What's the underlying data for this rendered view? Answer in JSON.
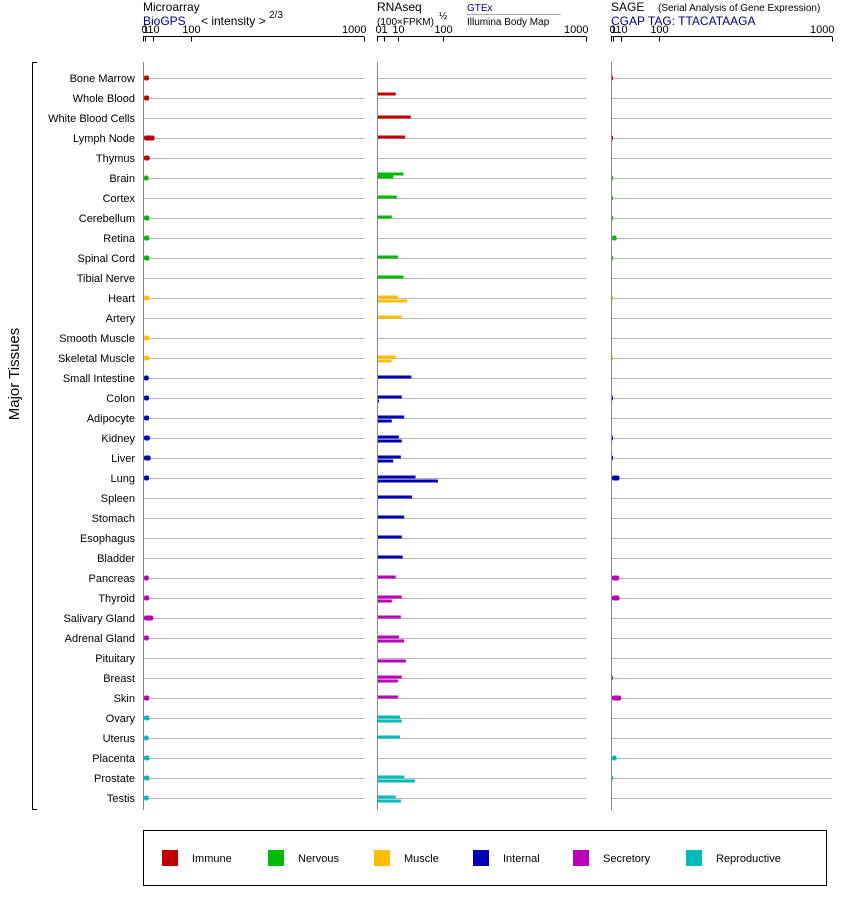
{
  "headers": {
    "microarray": {
      "title": "Microarray",
      "source": "BioGPS",
      "scale_label": "< intensity >",
      "scale_exp": "2/3"
    },
    "rnaseq": {
      "title": "RNAseq",
      "unit": "(100×FPKM)",
      "unit_exp": "½",
      "source1": "GTEx",
      "source2": "Illumina Body Map"
    },
    "sage": {
      "title": "SAGE",
      "subtitle": "(Serial Analysis of Gene Expression)",
      "tag": "CGAP TAG: TTACATAAGA"
    }
  },
  "group_label": "Major Tissues",
  "legend": [
    {
      "label": "Immune",
      "color": "#c00000"
    },
    {
      "label": "Nervous",
      "color": "#00bb00"
    },
    {
      "label": "Muscle",
      "color": "#ffbf00"
    },
    {
      "label": "Internal",
      "color": "#0000b4"
    },
    {
      "label": "Secretory",
      "color": "#bb00bb"
    },
    {
      "label": "Reproductive",
      "color": "#00bbbb"
    }
  ],
  "chart_data": [
    {
      "type": "bar",
      "title": "Microarray",
      "scale": "power-2/3",
      "xlim": [
        0,
        1000
      ],
      "xticks": [
        "0",
        "1",
        "10",
        "100",
        "1000"
      ],
      "categories": [
        "Bone Marrow",
        "Whole Blood",
        "White Blood Cells",
        "Lymph Node",
        "Thymus",
        "Brain",
        "Cortex",
        "Cerebellum",
        "Retina",
        "Spinal Cord",
        "Tibial Nerve",
        "Heart",
        "Artery",
        "Smooth Muscle",
        "Skeletal Muscle",
        "Small Intestine",
        "Colon",
        "Adipocyte",
        "Kidney",
        "Liver",
        "Lung",
        "Spleen",
        "Stomach",
        "Esophagus",
        "Bladder",
        "Pancreas",
        "Thyroid",
        "Salivary Gland",
        "Adrenal Gland",
        "Pituitary",
        "Breast",
        "Skin",
        "Ovary",
        "Uterus",
        "Placenta",
        "Prostate",
        "Testis"
      ],
      "groups": [
        "Immune",
        "Immune",
        "Immune",
        "Immune",
        "Immune",
        "Nervous",
        "Nervous",
        "Nervous",
        "Nervous",
        "Nervous",
        "Nervous",
        "Muscle",
        "Muscle",
        "Muscle",
        "Muscle",
        "Internal",
        "Internal",
        "Internal",
        "Internal",
        "Internal",
        "Internal",
        "Internal",
        "Internal",
        "Internal",
        "Internal",
        "Secretory",
        "Secretory",
        "Secretory",
        "Secretory",
        "Secretory",
        "Secretory",
        "Secretory",
        "Reproductive",
        "Reproductive",
        "Reproductive",
        "Reproductive",
        "Reproductive"
      ],
      "values": [
        4.5,
        4.6,
        null,
        12.0,
        5.3,
        4.0,
        null,
        4.9,
        4.8,
        4.9,
        null,
        4.9,
        null,
        4.9,
        4.9,
        4.2,
        4.5,
        4.6,
        5.5,
        6.4,
        4.6,
        null,
        null,
        null,
        null,
        4.2,
        4.7,
        10.0,
        4.3,
        null,
        null,
        4.7,
        4.9,
        4.1,
        4.9,
        4.9,
        4.2
      ]
    },
    {
      "type": "bar",
      "title": "RNAseq",
      "scale": "sqrt",
      "xlim": [
        0,
        1000
      ],
      "xticks": [
        "0",
        "1",
        "10",
        "100",
        "1000"
      ],
      "categories": [
        "Bone Marrow",
        "Whole Blood",
        "White Blood Cells",
        "Lymph Node",
        "Thymus",
        "Brain",
        "Cortex",
        "Cerebellum",
        "Retina",
        "Spinal Cord",
        "Tibial Nerve",
        "Heart",
        "Artery",
        "Smooth Muscle",
        "Skeletal Muscle",
        "Small Intestine",
        "Colon",
        "Adipocyte",
        "Kidney",
        "Liver",
        "Lung",
        "Spleen",
        "Stomach",
        "Esophagus",
        "Bladder",
        "Pancreas",
        "Thyroid",
        "Salivary Gland",
        "Adrenal Gland",
        "Pituitary",
        "Breast",
        "Skin",
        "Ovary",
        "Uterus",
        "Placenta",
        "Prostate",
        "Testis"
      ],
      "series": [
        {
          "values": [
            null,
            8,
            null,
            null,
            null,
            16,
            null,
            null,
            null,
            null,
            null,
            null,
            null,
            null,
            null,
            null,
            null,
            null,
            null,
            null,
            null,
            null,
            null,
            null,
            null,
            null,
            null,
            null,
            null,
            null,
            null,
            null,
            null,
            null,
            null,
            null,
            null
          ]
        },
        {
          "values": [
            null,
            null,
            26,
            18,
            null,
            6,
            9,
            5,
            null,
            10,
            16,
            10,
            14,
            null,
            8,
            27,
            14,
            17,
            11,
            13,
            34,
            28,
            17,
            14,
            15,
            8,
            14,
            13,
            11,
            null,
            14,
            10,
            12,
            12,
            null,
            17,
            8
          ]
        },
        {
          "values": [
            null,
            null,
            null,
            null,
            null,
            null,
            null,
            null,
            null,
            null,
            null,
            21,
            null,
            null,
            5,
            null,
            0.1,
            5,
            14,
            6,
            85,
            null,
            null,
            null,
            null,
            null,
            5,
            null,
            17,
            19,
            10,
            null,
            14,
            null,
            null,
            33,
            13
          ]
        }
      ]
    },
    {
      "type": "bar",
      "title": "SAGE",
      "scale": "power-2/3",
      "xlim": [
        0,
        1000
      ],
      "xticks": [
        "0",
        "1",
        "10",
        "100",
        "1000"
      ],
      "categories": [
        "Bone Marrow",
        "Whole Blood",
        "White Blood Cells",
        "Lymph Node",
        "Thymus",
        "Brain",
        "Cortex",
        "Cerebellum",
        "Retina",
        "Spinal Cord",
        "Tibial Nerve",
        "Heart",
        "Artery",
        "Smooth Muscle",
        "Skeletal Muscle",
        "Small Intestine",
        "Colon",
        "Adipocyte",
        "Kidney",
        "Liver",
        "Lung",
        "Spleen",
        "Stomach",
        "Esophagus",
        "Bladder",
        "Pancreas",
        "Thyroid",
        "Salivary Gland",
        "Adrenal Gland",
        "Pituitary",
        "Breast",
        "Skin",
        "Ovary",
        "Uterus",
        "Placenta",
        "Prostate",
        "Testis"
      ],
      "values": [
        0.1,
        null,
        null,
        0.1,
        null,
        0.1,
        0.1,
        0.1,
        4.0,
        0.1,
        null,
        0.05,
        null,
        null,
        0.05,
        null,
        0.1,
        null,
        0.1,
        0.1,
        7.5,
        null,
        null,
        null,
        null,
        7.0,
        7.5,
        null,
        null,
        null,
        0.1,
        10.0,
        null,
        null,
        4.0,
        0.1,
        null
      ]
    }
  ]
}
